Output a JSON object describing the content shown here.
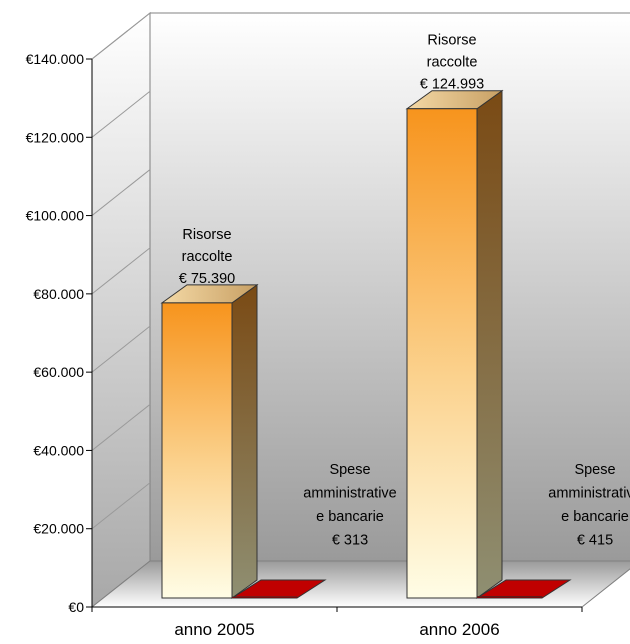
{
  "chart_data": {
    "type": "bar",
    "title": "",
    "xlabel": "",
    "ylabel": "",
    "categories": [
      "anno 2005",
      "anno 2006"
    ],
    "ylim": [
      0,
      140000
    ],
    "yticks": [
      "€0",
      "€20.000",
      "€40.000",
      "€60.000",
      "€80.000",
      "€100.000",
      "€120.000",
      "€140.000"
    ],
    "series": [
      {
        "values": [
          75390,
          124993
        ],
        "labels": [
          [
            "Risorse",
            "raccolte",
            "€ 75.390"
          ],
          [
            "Risorse",
            "raccolte",
            "€ 124.993"
          ]
        ],
        "color": "#f7941d"
      },
      {
        "values": [
          313,
          415
        ],
        "labels": [
          [
            "Spese",
            "amministrative",
            "e bancarie",
            "€ 313"
          ],
          [
            "Spese",
            "amministrative",
            "e bancarie",
            "€ 415"
          ]
        ],
        "color": "#c00000"
      }
    ]
  }
}
